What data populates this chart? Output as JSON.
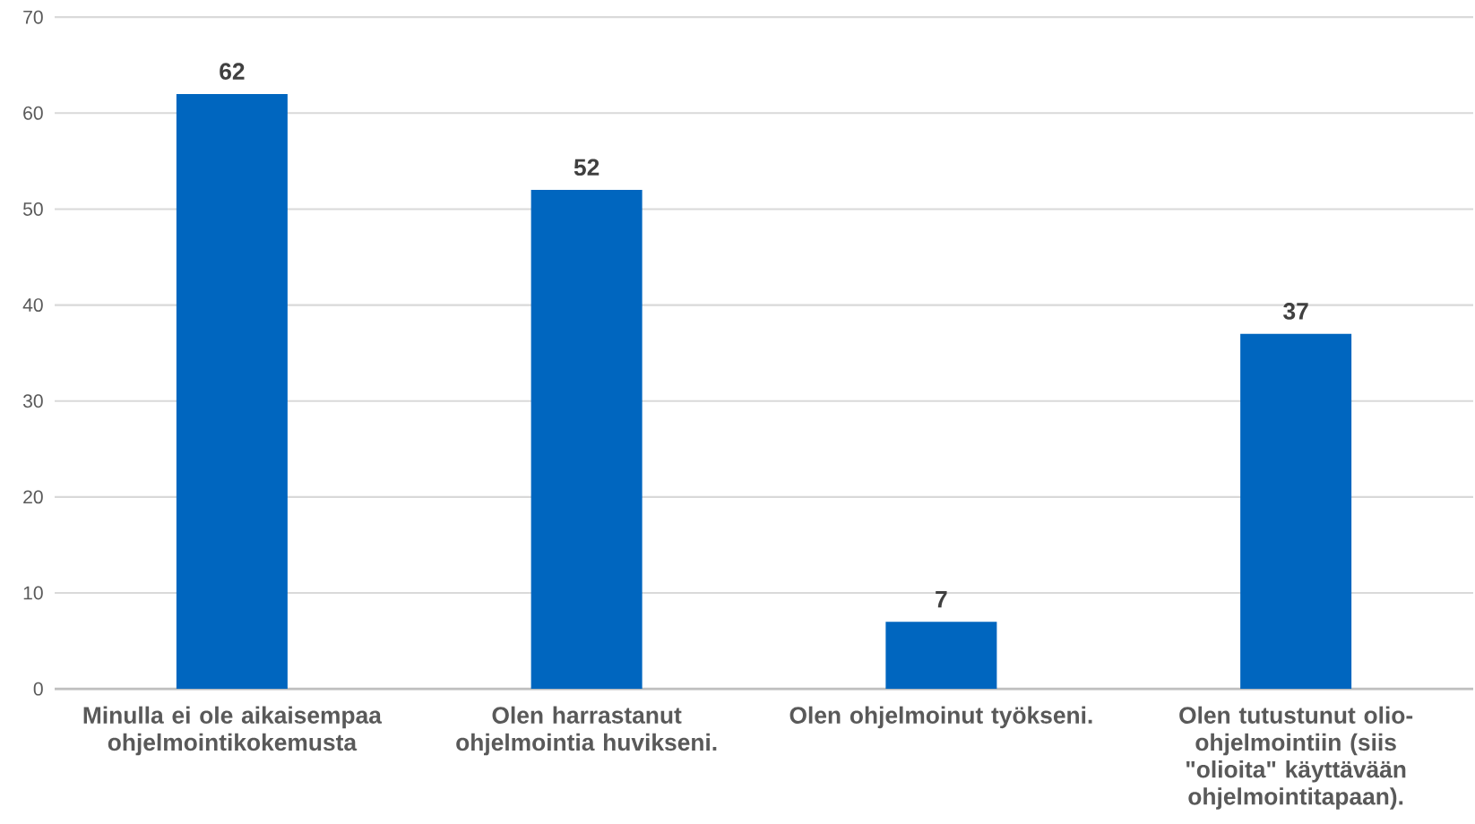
{
  "chart_data": {
    "type": "bar",
    "categories": [
      "Minulla ei ole aikaisempaa ohjelmointikokemusta",
      "Olen harrastanut ohjelmointia huvikseni.",
      "Olen ohjelmoinut työkseni.",
      "Olen tutustunut olio-ohjelmointiin (siis \"olioita\" käyttävään ohjelmointitapaan)."
    ],
    "values": [
      62,
      52,
      7,
      37
    ],
    "color": "#0066bf",
    "ylim": [
      0,
      70
    ],
    "yticks": [
      0,
      10,
      20,
      30,
      40,
      50,
      60,
      70
    ],
    "grid": "y",
    "data_labels": true
  }
}
